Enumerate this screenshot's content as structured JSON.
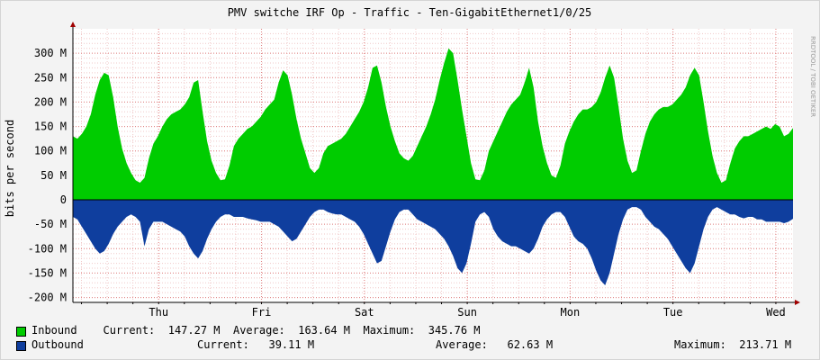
{
  "chart_data": {
    "type": "area",
    "title": "PMV switche IRF Op - Traffic - Ten-GigabitEthernet1/0/25",
    "ylabel": "bits per second",
    "credit": "RRDTOOL / TOBI OETIKER",
    "ylim": [
      -210000000,
      350000000
    ],
    "y_ticks": [
      {
        "value": 300000000,
        "label": "300 M"
      },
      {
        "value": 250000000,
        "label": "250 M"
      },
      {
        "value": 200000000,
        "label": "200 M"
      },
      {
        "value": 150000000,
        "label": "150 M"
      },
      {
        "value": 100000000,
        "label": "100 M"
      },
      {
        "value": 50000000,
        "label": "50 M"
      },
      {
        "value": 0,
        "label": "0"
      },
      {
        "value": -50000000,
        "label": "-50 M"
      },
      {
        "value": -100000000,
        "label": "-100 M"
      },
      {
        "value": -150000000,
        "label": "-150 M"
      },
      {
        "value": -200000000,
        "label": "-200 M"
      }
    ],
    "x_range_hours": [
      0,
      168
    ],
    "x_ticks": [
      {
        "hour": 20,
        "label": "Thu"
      },
      {
        "hour": 44,
        "label": "Fri"
      },
      {
        "hour": 68,
        "label": "Sat"
      },
      {
        "hour": 92,
        "label": "Sun"
      },
      {
        "hour": 116,
        "label": "Mon"
      },
      {
        "hour": 140,
        "label": "Tue"
      },
      {
        "hour": 164,
        "label": "Wed"
      }
    ],
    "series": [
      {
        "name": "Inbound",
        "color": "#00cc00",
        "values": [
          130,
          125,
          135,
          150,
          175,
          215,
          245,
          260,
          255,
          210,
          150,
          105,
          75,
          55,
          40,
          35,
          45,
          85,
          115,
          130,
          150,
          165,
          175,
          180,
          185,
          195,
          210,
          240,
          245,
          180,
          120,
          80,
          55,
          40,
          42,
          70,
          110,
          125,
          135,
          145,
          150,
          160,
          170,
          185,
          195,
          205,
          240,
          265,
          255,
          215,
          165,
          125,
          95,
          65,
          55,
          65,
          95,
          110,
          115,
          120,
          125,
          135,
          150,
          165,
          180,
          200,
          230,
          270,
          275,
          240,
          190,
          150,
          120,
          95,
          85,
          80,
          90,
          110,
          130,
          150,
          175,
          205,
          245,
          280,
          310,
          300,
          245,
          185,
          130,
          75,
          42,
          40,
          60,
          100,
          120,
          140,
          160,
          180,
          195,
          205,
          215,
          240,
          270,
          230,
          160,
          110,
          75,
          50,
          45,
          70,
          115,
          140,
          160,
          175,
          185,
          185,
          190,
          200,
          220,
          250,
          275,
          250,
          190,
          125,
          80,
          55,
          60,
          100,
          135,
          160,
          175,
          185,
          190,
          190,
          195,
          205,
          215,
          230,
          255,
          270,
          255,
          200,
          140,
          90,
          55,
          35,
          40,
          75,
          105,
          120,
          130,
          130,
          135,
          140,
          145,
          150,
          145,
          155,
          150,
          130,
          135,
          147
        ],
        "current": "147.27 M",
        "average": "163.64 M",
        "maximum": "345.76 M"
      },
      {
        "name": "Outbound",
        "color": "#0f3e9e",
        "values": [
          -35,
          -40,
          -55,
          -70,
          -85,
          -100,
          -110,
          -105,
          -90,
          -70,
          -55,
          -45,
          -35,
          -30,
          -35,
          -45,
          -95,
          -60,
          -45,
          -45,
          -45,
          -50,
          -55,
          -60,
          -65,
          -75,
          -95,
          -110,
          -120,
          -105,
          -80,
          -60,
          -45,
          -35,
          -30,
          -30,
          -35,
          -35,
          -35,
          -38,
          -40,
          -42,
          -45,
          -45,
          -45,
          -50,
          -55,
          -65,
          -75,
          -85,
          -80,
          -65,
          -50,
          -35,
          -25,
          -20,
          -20,
          -25,
          -28,
          -30,
          -30,
          -35,
          -40,
          -45,
          -55,
          -70,
          -90,
          -110,
          -130,
          -125,
          -95,
          -65,
          -40,
          -25,
          -20,
          -20,
          -30,
          -40,
          -45,
          -50,
          -55,
          -60,
          -70,
          -80,
          -95,
          -115,
          -140,
          -150,
          -130,
          -90,
          -45,
          -30,
          -25,
          -35,
          -60,
          -75,
          -85,
          -90,
          -95,
          -95,
          -100,
          -105,
          -110,
          -100,
          -80,
          -55,
          -40,
          -30,
          -25,
          -25,
          -35,
          -55,
          -75,
          -85,
          -90,
          -100,
          -120,
          -145,
          -165,
          -175,
          -150,
          -110,
          -70,
          -40,
          -20,
          -15,
          -15,
          -20,
          -35,
          -45,
          -55,
          -60,
          -70,
          -80,
          -95,
          -110,
          -125,
          -140,
          -150,
          -130,
          -95,
          -60,
          -35,
          -20,
          -15,
          -20,
          -25,
          -30,
          -30,
          -35,
          -38,
          -35,
          -35,
          -40,
          -40,
          -45,
          -45,
          -45,
          -45,
          -48,
          -45,
          -39
        ],
        "current": "39.11 M",
        "average": "62.63 M",
        "maximum": "213.71 M"
      }
    ],
    "grid": true,
    "legend_position": "bottom"
  },
  "legend": {
    "current_label": "Current:",
    "average_label": "Average:",
    "maximum_label": "Maximum:"
  }
}
